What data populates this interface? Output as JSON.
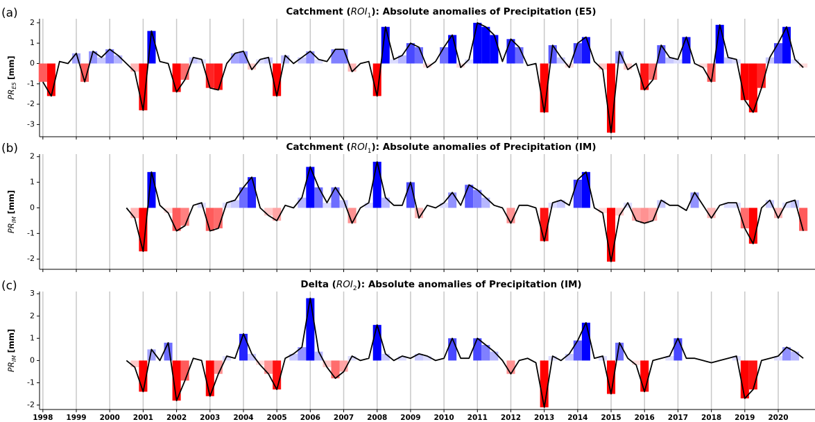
{
  "chart_data": [
    {
      "type": "line",
      "panel_label": "(a)",
      "title_parts": [
        "Catchment (",
        "ROI",
        "1",
        "): Absolute anomalies of Precipitation (E5)"
      ],
      "ylabel": "PR",
      "ylabel_sub": "E5",
      "ylabel_unit": "[mm]",
      "color": "#000000",
      "positive_color": "#0000ff",
      "negative_color": "#ff0000",
      "xlim": [
        1997.9,
        2021.1
      ],
      "ylim": [
        -3.6,
        2.2
      ],
      "yticks": [
        -3,
        -2,
        -1,
        0,
        1,
        2
      ],
      "x": [
        1998,
        1998.25,
        1998.5,
        1998.75,
        1999,
        1999.25,
        1999.5,
        1999.75,
        2000,
        2000.25,
        2000.5,
        2000.75,
        2001,
        2001.25,
        2001.5,
        2001.75,
        2002,
        2002.25,
        2002.5,
        2002.75,
        2003,
        2003.25,
        2003.5,
        2003.75,
        2004,
        2004.25,
        2004.5,
        2004.75,
        2005,
        2005.25,
        2005.5,
        2005.75,
        2006,
        2006.25,
        2006.5,
        2006.75,
        2007,
        2007.25,
        2007.5,
        2007.75,
        2008,
        2008.25,
        2008.5,
        2008.75,
        2009,
        2009.25,
        2009.5,
        2009.75,
        2010,
        2010.25,
        2010.5,
        2010.75,
        2011,
        2011.25,
        2011.5,
        2011.75,
        2012,
        2012.25,
        2012.5,
        2012.75,
        2013,
        2013.25,
        2013.5,
        2013.75,
        2014,
        2014.25,
        2014.5,
        2014.75,
        2015,
        2015.25,
        2015.5,
        2015.75,
        2016,
        2016.25,
        2016.5,
        2016.75,
        2017,
        2017.25,
        2017.5,
        2017.75,
        2018,
        2018.25,
        2018.5,
        2018.75,
        2019,
        2019.25,
        2019.5,
        2019.75,
        2020,
        2020.25,
        2020.5,
        2020.75
      ],
      "values": [
        -0.9,
        -1.6,
        0.1,
        0.0,
        0.5,
        -0.9,
        0.6,
        0.3,
        0.7,
        0.4,
        0.0,
        -0.4,
        -2.3,
        1.6,
        0.1,
        0.0,
        -1.4,
        -0.8,
        0.3,
        0.2,
        -1.2,
        -1.3,
        0.0,
        0.5,
        0.6,
        -0.3,
        0.2,
        0.3,
        -1.6,
        0.4,
        0.0,
        0.3,
        0.6,
        0.2,
        0.1,
        0.7,
        0.7,
        -0.4,
        0.0,
        0.1,
        -1.6,
        1.8,
        0.2,
        0.4,
        1.0,
        0.8,
        -0.2,
        0.1,
        0.8,
        1.4,
        -0.2,
        0.2,
        2.0,
        1.8,
        1.4,
        0.1,
        1.2,
        0.8,
        -0.1,
        0.0,
        -2.4,
        0.9,
        0.3,
        -0.2,
        1.0,
        1.3,
        0.1,
        -0.3,
        -3.4,
        0.6,
        -0.3,
        0.0,
        -1.3,
        -0.8,
        0.9,
        0.3,
        0.2,
        1.3,
        0.0,
        -0.2,
        -0.9,
        1.9,
        0.3,
        0.2,
        -1.8,
        -2.4,
        -1.2,
        0.3,
        1.0,
        1.8,
        0.2,
        -0.2
      ]
    },
    {
      "type": "line",
      "panel_label": "(b)",
      "title_parts": [
        "Catchment (",
        "ROI",
        "1",
        "): Absolute anomalies of Precipitation (IM)"
      ],
      "ylabel": "PR",
      "ylabel_sub": "IM",
      "ylabel_unit": "[mm]",
      "color": "#000000",
      "positive_color": "#0000ff",
      "negative_color": "#ff0000",
      "xlim": [
        1997.9,
        2021.1
      ],
      "ylim": [
        -2.4,
        2.1
      ],
      "yticks": [
        -2,
        -1,
        0,
        1,
        2
      ],
      "x": [
        2000.5,
        2000.75,
        2001,
        2001.25,
        2001.5,
        2001.75,
        2002,
        2002.25,
        2002.5,
        2002.75,
        2003,
        2003.25,
        2003.5,
        2003.75,
        2004,
        2004.25,
        2004.5,
        2004.75,
        2005,
        2005.25,
        2005.5,
        2005.75,
        2006,
        2006.25,
        2006.5,
        2006.75,
        2007,
        2007.25,
        2007.5,
        2007.75,
        2008,
        2008.25,
        2008.5,
        2008.75,
        2009,
        2009.25,
        2009.5,
        2009.75,
        2010,
        2010.25,
        2010.5,
        2010.75,
        2011,
        2011.25,
        2011.5,
        2011.75,
        2012,
        2012.25,
        2012.5,
        2012.75,
        2013,
        2013.25,
        2013.5,
        2013.75,
        2014,
        2014.25,
        2014.5,
        2014.75,
        2015,
        2015.25,
        2015.5,
        2015.75,
        2016,
        2016.25,
        2016.5,
        2016.75,
        2017,
        2017.25,
        2017.5,
        2017.75,
        2018,
        2018.25,
        2018.5,
        2018.75,
        2019,
        2019.25,
        2019.5,
        2019.75,
        2020,
        2020.25,
        2020.5,
        2020.75
      ],
      "values": [
        0.0,
        -0.4,
        -1.7,
        1.4,
        0.1,
        -0.2,
        -0.9,
        -0.7,
        0.1,
        0.2,
        -0.9,
        -0.8,
        0.2,
        0.3,
        0.8,
        1.2,
        0.0,
        -0.3,
        -0.5,
        0.1,
        0.0,
        0.4,
        1.6,
        0.8,
        0.2,
        0.8,
        0.3,
        -0.6,
        0.0,
        0.2,
        1.8,
        0.4,
        0.1,
        0.1,
        1.0,
        -0.4,
        0.1,
        0.0,
        0.2,
        0.6,
        0.1,
        0.9,
        0.7,
        0.4,
        0.1,
        0.0,
        -0.6,
        0.1,
        0.1,
        0.0,
        -1.3,
        0.2,
        0.3,
        0.1,
        1.1,
        1.4,
        0.0,
        -0.2,
        -2.1,
        -0.3,
        0.2,
        -0.5,
        -0.6,
        -0.5,
        0.3,
        0.1,
        0.1,
        -0.1,
        0.6,
        0.1,
        -0.4,
        0.1,
        0.2,
        0.2,
        -0.8,
        -1.4,
        0.0,
        0.3,
        -0.4,
        0.2,
        0.3,
        -0.9
      ]
    },
    {
      "type": "line",
      "panel_label": "(c)",
      "title_parts": [
        "Delta (",
        "ROI",
        "2",
        "): Absolute anomalies of Precipitation (IM)"
      ],
      "ylabel": "PR",
      "ylabel_sub": "IM",
      "ylabel_unit": "[mm]",
      "color": "#000000",
      "positive_color": "#0000ff",
      "negative_color": "#ff0000",
      "xlim": [
        1997.9,
        2021.1
      ],
      "ylim": [
        -2.2,
        3.1
      ],
      "yticks": [
        -2,
        -1,
        0,
        1,
        2,
        3
      ],
      "xticks": [
        1998,
        1999,
        2000,
        2001,
        2002,
        2003,
        2004,
        2005,
        2006,
        2007,
        2008,
        2009,
        2010,
        2011,
        2012,
        2013,
        2014,
        2015,
        2016,
        2017,
        2018,
        2019,
        2020
      ],
      "x": [
        2000.5,
        2000.75,
        2001,
        2001.25,
        2001.5,
        2001.75,
        2002,
        2002.25,
        2002.5,
        2002.75,
        2003,
        2003.25,
        2003.5,
        2003.75,
        2004,
        2004.25,
        2004.5,
        2004.75,
        2005,
        2005.25,
        2005.5,
        2005.75,
        2006,
        2006.25,
        2006.5,
        2006.75,
        2007,
        2007.25,
        2007.5,
        2007.75,
        2008,
        2008.25,
        2008.5,
        2008.75,
        2009,
        2009.25,
        2009.5,
        2009.75,
        2010,
        2010.25,
        2010.5,
        2010.75,
        2011,
        2011.25,
        2011.5,
        2011.75,
        2012,
        2012.25,
        2012.5,
        2012.75,
        2013,
        2013.25,
        2013.5,
        2013.75,
        2014,
        2014.25,
        2014.5,
        2014.75,
        2015,
        2015.25,
        2015.5,
        2015.75,
        2016,
        2016.25,
        2016.5,
        2016.75,
        2017,
        2017.25,
        2017.5,
        2017.75,
        2018,
        2018.25,
        2018.5,
        2018.75,
        2019,
        2019.25,
        2019.5,
        2019.75,
        2020,
        2020.25,
        2020.5,
        2020.75
      ],
      "values": [
        0.0,
        -0.3,
        -1.4,
        0.5,
        0.0,
        0.8,
        -1.8,
        -0.9,
        0.1,
        0.0,
        -1.6,
        -0.6,
        0.2,
        0.1,
        1.2,
        0.3,
        -0.2,
        -0.6,
        -1.3,
        0.1,
        0.3,
        0.6,
        2.8,
        0.4,
        -0.3,
        -0.8,
        -0.5,
        0.2,
        0.0,
        0.1,
        1.6,
        0.3,
        0.0,
        0.2,
        0.1,
        0.3,
        0.2,
        0.0,
        0.1,
        1.0,
        0.1,
        0.1,
        1.0,
        0.7,
        0.4,
        0.0,
        -0.6,
        0.0,
        0.1,
        -0.1,
        -2.1,
        0.2,
        0.0,
        0.3,
        0.9,
        1.7,
        0.1,
        0.2,
        -1.5,
        0.8,
        0.1,
        -0.2,
        -1.4,
        0.0,
        0.1,
        0.2,
        1.0,
        0.1,
        0.1,
        0.0,
        -0.1,
        0.0,
        0.1,
        0.2,
        -1.7,
        -1.3,
        0.0,
        0.1,
        0.2,
        0.6,
        0.4,
        0.1
      ]
    }
  ]
}
